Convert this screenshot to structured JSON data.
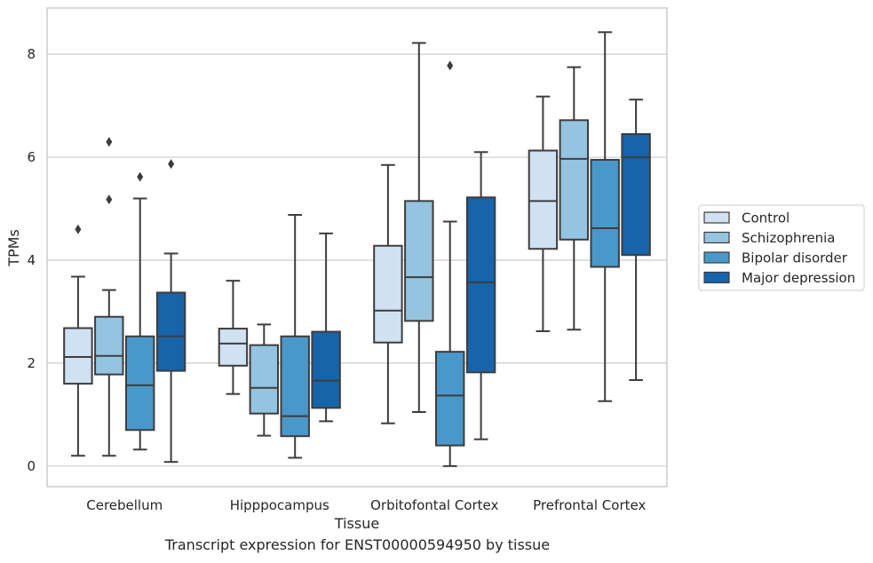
{
  "caption": "Transcript expression for ENST00000594950 by tissue",
  "chart_data": {
    "type": "box",
    "title": "",
    "xlabel": "Tissue",
    "ylabel": "TPMs",
    "ylim": [
      -0.4,
      8.9
    ],
    "yticks": [
      0,
      2,
      4,
      6,
      8
    ],
    "grid": "horizontal",
    "legend_position": "right",
    "categories": [
      "Cerebellum",
      "Hipppocampus",
      "Orbitofontal Cortex",
      "Prefrontal Cortex"
    ],
    "series": [
      {
        "name": "Control",
        "color": "#d0e1f2",
        "boxes": [
          {
            "whislo": 0.2,
            "q1": 1.6,
            "med": 2.12,
            "q3": 2.68,
            "whishi": 3.68,
            "fliers": [
              4.6
            ]
          },
          {
            "whislo": 1.4,
            "q1": 1.95,
            "med": 2.38,
            "q3": 2.67,
            "whishi": 3.6,
            "fliers": []
          },
          {
            "whislo": 0.83,
            "q1": 2.4,
            "med": 3.02,
            "q3": 4.28,
            "whishi": 5.85,
            "fliers": []
          },
          {
            "whislo": 2.62,
            "q1": 4.22,
            "med": 5.15,
            "q3": 6.13,
            "whishi": 7.18,
            "fliers": []
          }
        ]
      },
      {
        "name": "Schizophrenia",
        "color": "#94c4df",
        "boxes": [
          {
            "whislo": 0.2,
            "q1": 1.78,
            "med": 2.14,
            "q3": 2.9,
            "whishi": 3.42,
            "fliers": [
              5.18,
              6.3
            ]
          },
          {
            "whislo": 0.59,
            "q1": 1.02,
            "med": 1.52,
            "q3": 2.35,
            "whishi": 2.75,
            "fliers": []
          },
          {
            "whislo": 1.05,
            "q1": 2.82,
            "med": 3.67,
            "q3": 5.15,
            "whishi": 8.22,
            "fliers": []
          },
          {
            "whislo": 2.65,
            "q1": 4.4,
            "med": 5.97,
            "q3": 6.72,
            "whishi": 7.75,
            "fliers": []
          }
        ]
      },
      {
        "name": "Bipolar disorder",
        "color": "#4a98c9",
        "boxes": [
          {
            "whislo": 0.32,
            "q1": 0.7,
            "med": 1.57,
            "q3": 2.52,
            "whishi": 5.2,
            "fliers": [
              5.62
            ]
          },
          {
            "whislo": 0.16,
            "q1": 0.58,
            "med": 0.97,
            "q3": 2.52,
            "whishi": 4.88,
            "fliers": []
          },
          {
            "whislo": 0.0,
            "q1": 0.4,
            "med": 1.37,
            "q3": 2.22,
            "whishi": 4.75,
            "fliers": [
              7.78
            ]
          },
          {
            "whislo": 1.26,
            "q1": 3.87,
            "med": 4.62,
            "q3": 5.95,
            "whishi": 8.43,
            "fliers": []
          }
        ]
      },
      {
        "name": "Major depression",
        "color": "#1764ab",
        "boxes": [
          {
            "whislo": 0.08,
            "q1": 1.85,
            "med": 2.52,
            "q3": 3.37,
            "whishi": 4.13,
            "fliers": [
              5.87
            ]
          },
          {
            "whislo": 0.87,
            "q1": 1.13,
            "med": 1.66,
            "q3": 2.61,
            "whishi": 4.52,
            "fliers": []
          },
          {
            "whislo": 0.52,
            "q1": 1.82,
            "med": 3.57,
            "q3": 5.22,
            "whishi": 6.1,
            "fliers": []
          },
          {
            "whislo": 1.67,
            "q1": 4.1,
            "med": 6.0,
            "q3": 6.45,
            "whishi": 7.12,
            "fliers": []
          }
        ]
      }
    ]
  }
}
